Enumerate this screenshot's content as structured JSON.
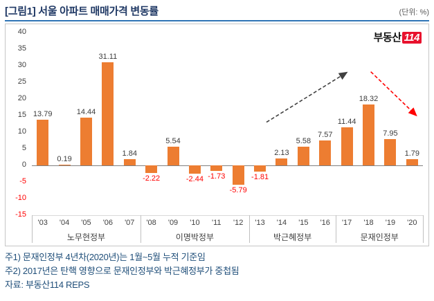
{
  "header": {
    "title": "[그림1] 서울 아파트 매매가격 변동률",
    "unit": "(단위: %)"
  },
  "logo": {
    "text": "부동산",
    "badge": "114"
  },
  "chart_data": {
    "type": "bar",
    "title": "[그림1] 서울 아파트 매매가격 변동률",
    "unit": "(단위: %)",
    "categories": [
      "'03",
      "'04",
      "'05",
      "'06",
      "'07",
      "'08",
      "'09",
      "'10",
      "'11",
      "'12",
      "'13",
      "'14",
      "'15",
      "'16",
      "'17",
      "'18",
      "'19",
      "'20"
    ],
    "values": [
      13.79,
      0.19,
      14.44,
      31.11,
      1.84,
      -2.22,
      5.54,
      -2.44,
      -1.73,
      -5.79,
      -1.81,
      2.13,
      5.58,
      7.57,
      11.44,
      18.32,
      7.95,
      1.79
    ],
    "groups": [
      {
        "label": "노무현정부",
        "span": 5
      },
      {
        "label": "이명박정부",
        "span": 5
      },
      {
        "label": "박근혜정부",
        "span": 4
      },
      {
        "label": "문재인정부",
        "span": 4
      }
    ],
    "ylim": [
      -15,
      40
    ],
    "ytick_step": 5,
    "grid": "off",
    "legend": "none",
    "bar_color": "#ED7D31",
    "negative_label_color": "#FF0000"
  },
  "annotations": [
    {
      "name": "uptrend-arrow",
      "color": "#404040",
      "from_slot": 10.3,
      "from_value": 13.0,
      "to_slot": 14.0,
      "to_value": 28.0
    },
    {
      "name": "downtrend-arrow",
      "color": "#FF0000",
      "from_slot": 15.1,
      "from_value": 28.2,
      "to_slot": 17.2,
      "to_value": 15.0
    }
  ],
  "footer": {
    "note1": "주1) 문재인정부 4년차(2020년)는 1월~5월 누적 기준임",
    "note2": "주2) 2017년은 탄핵 영향으로 문재인정부와 박근혜정부가 중첩됨",
    "source": "자료: 부동산114 REPS"
  }
}
